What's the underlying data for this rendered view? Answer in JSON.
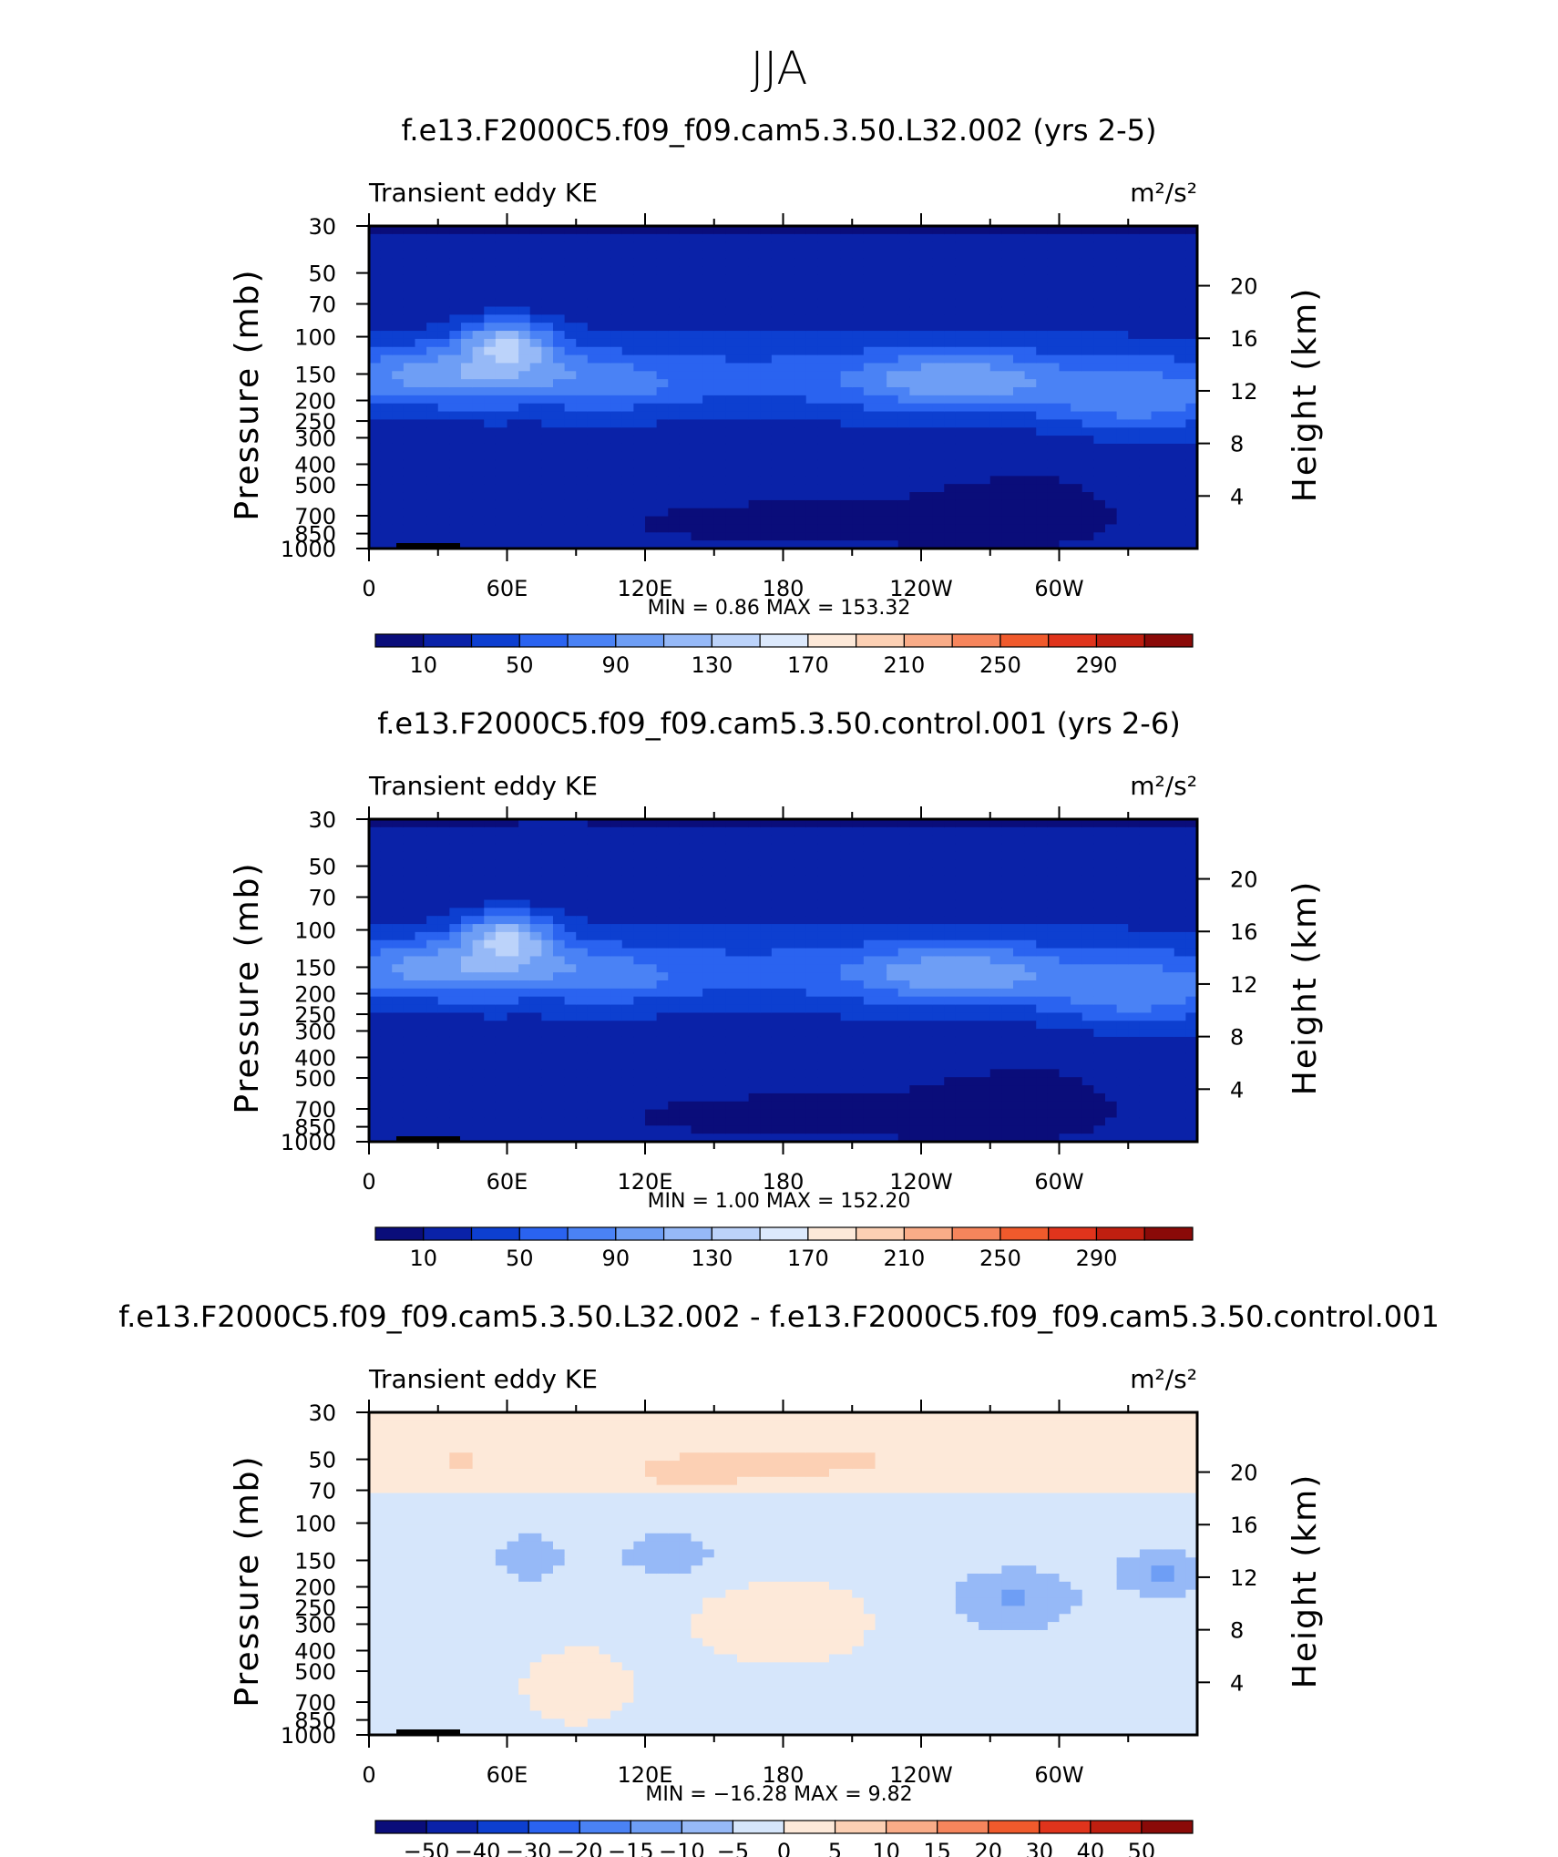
{
  "figure_title": "JJA",
  "colors": {
    "abs_palette": [
      "#0a0d7a",
      "#0a22a8",
      "#0d3fd0",
      "#2a63f0",
      "#4a82f5",
      "#6e9ef5",
      "#96b9f7",
      "#bcd3fa",
      "#dce9fc",
      "#fde9d9",
      "#fcd0b4",
      "#f9ac88",
      "#f6855c",
      "#f05a2c",
      "#e0341c",
      "#bf1f10",
      "#8a0a08"
    ],
    "diff_palette": [
      "#0a0d7a",
      "#0a22a8",
      "#0d3fd0",
      "#2a63f0",
      "#4a82f5",
      "#6e9ef5",
      "#96b9f7",
      "#d6e6fb",
      "#fde9d9",
      "#fcd0b4",
      "#f9ac88",
      "#f6855c",
      "#f05a2c",
      "#e0341c",
      "#bf1f10",
      "#8a0a08"
    ]
  },
  "chart_data": [
    {
      "type": "contour",
      "title": "f.e13.F2000C5.f09_f09.cam5.3.50.L32.002 (yrs 2-5)",
      "variable": "Transient eddy KE",
      "units": "m²/s²",
      "ylabel_left": "Pressure (mb)",
      "ylabel_right": "Height (km)",
      "x_ticks": [
        "0",
        "60E",
        "120E",
        "180",
        "120W",
        "60W"
      ],
      "pressure_ticks": [
        "30",
        "50",
        "70",
        "100",
        "150",
        "200",
        "250",
        "300",
        "400",
        "500",
        "700",
        "850",
        "1000"
      ],
      "height_ticks": [
        "20",
        "16",
        "12",
        "8",
        "4"
      ],
      "min_max": "MIN =     0.86   MAX  =  153.32",
      "colorbar_labels": [
        "10",
        "50",
        "90",
        "130",
        "170",
        "210",
        "250",
        "290"
      ],
      "max_value": 153.32,
      "min_value": 0.86
    },
    {
      "type": "contour",
      "title": "f.e13.F2000C5.f09_f09.cam5.3.50.control.001 (yrs 2-6)",
      "variable": "Transient eddy KE",
      "units": "m²/s²",
      "ylabel_left": "Pressure (mb)",
      "ylabel_right": "Height (km)",
      "x_ticks": [
        "0",
        "60E",
        "120E",
        "180",
        "120W",
        "60W"
      ],
      "pressure_ticks": [
        "30",
        "50",
        "70",
        "100",
        "150",
        "200",
        "250",
        "300",
        "400",
        "500",
        "700",
        "850",
        "1000"
      ],
      "height_ticks": [
        "20",
        "16",
        "12",
        "8",
        "4"
      ],
      "min_max": "MIN =     1.00   MAX  =  152.20",
      "colorbar_labels": [
        "10",
        "50",
        "90",
        "130",
        "170",
        "210",
        "250",
        "290"
      ],
      "max_value": 152.2,
      "min_value": 1.0
    },
    {
      "type": "contour",
      "title": "f.e13.F2000C5.f09_f09.cam5.3.50.L32.002 - f.e13.F2000C5.f09_f09.cam5.3.50.control.001",
      "variable": "Transient eddy KE",
      "units": "m²/s²",
      "ylabel_left": "Pressure (mb)",
      "ylabel_right": "Height (km)",
      "x_ticks": [
        "0",
        "60E",
        "120E",
        "180",
        "120W",
        "60W"
      ],
      "pressure_ticks": [
        "30",
        "50",
        "70",
        "100",
        "150",
        "200",
        "250",
        "300",
        "400",
        "500",
        "700",
        "850",
        "1000"
      ],
      "height_ticks": [
        "20",
        "16",
        "12",
        "8",
        "4"
      ],
      "min_max": "MIN =  −16.28   MAX  =     9.82",
      "colorbar_labels": [
        "−50",
        "−40",
        "−30",
        "−20",
        "−15",
        "−10",
        "−5",
        "0",
        "5",
        "10",
        "15",
        "20",
        "30",
        "40",
        "50"
      ],
      "max_value": 9.82,
      "min_value": -16.28
    }
  ]
}
